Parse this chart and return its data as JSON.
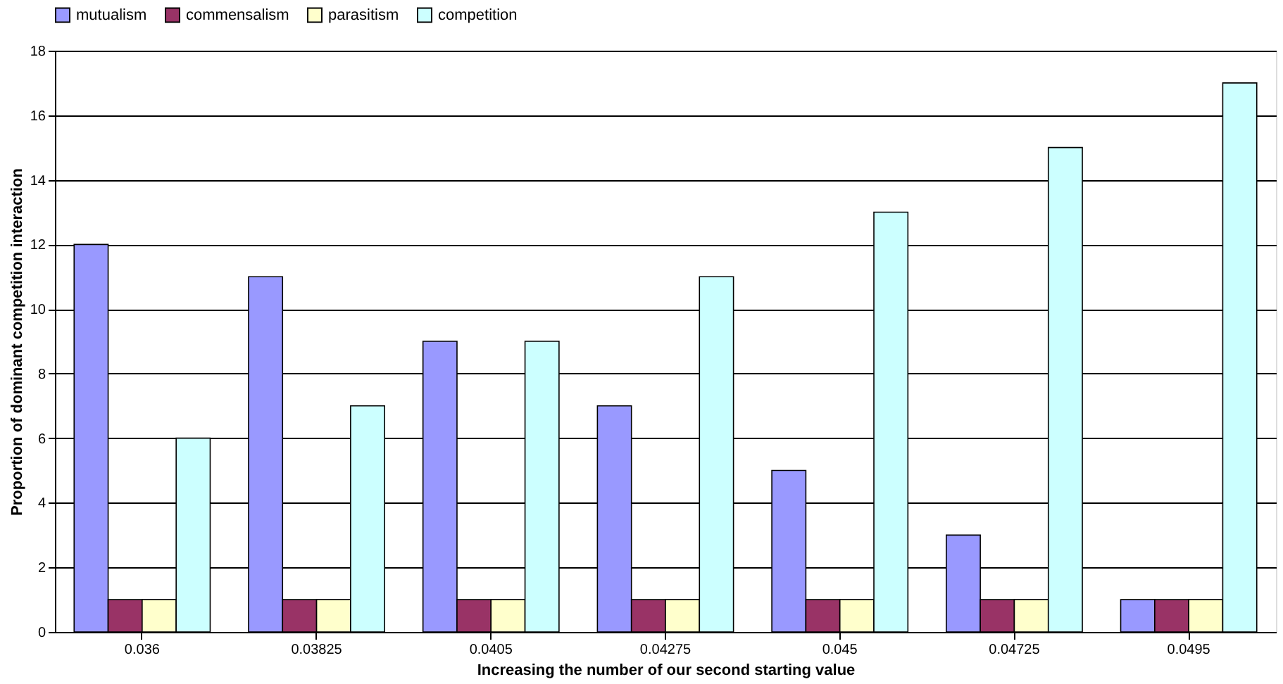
{
  "chart_data": {
    "type": "bar",
    "xlabel": "Increasing the number of our second starting value",
    "ylabel": "Proportion of dominant competition interaction",
    "categories": [
      "0.036",
      "0.03825",
      "0.0405",
      "0.04275",
      "0.045",
      "0.04725",
      "0.0495"
    ],
    "series": [
      {
        "name": "mutualism",
        "color": "#9999ff",
        "values": [
          12,
          11,
          9,
          7,
          5,
          3,
          1
        ]
      },
      {
        "name": "commensalism",
        "color": "#993366",
        "values": [
          1,
          1,
          1,
          1,
          1,
          1,
          1
        ]
      },
      {
        "name": "parasitism",
        "color": "#ffffcc",
        "values": [
          1,
          1,
          1,
          1,
          1,
          1,
          1
        ]
      },
      {
        "name": "competition",
        "color": "#ccffff",
        "values": [
          6,
          7,
          9,
          11,
          13,
          15,
          17
        ]
      }
    ],
    "ylim": [
      0,
      18
    ],
    "yticks": [
      0,
      2,
      4,
      6,
      8,
      10,
      12,
      14,
      16,
      18
    ],
    "grid": "y",
    "legend": "top"
  }
}
